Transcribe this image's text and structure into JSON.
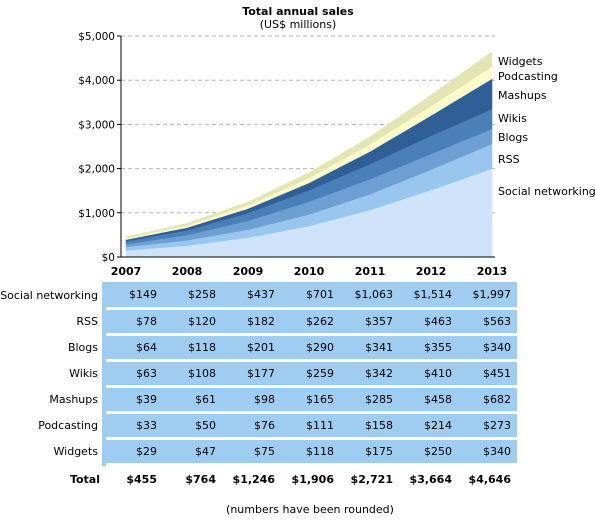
{
  "chart_data": {
    "type": "area",
    "stacked": true,
    "title": "Total annual sales",
    "subtitle": "(US$ millions)",
    "categories": [
      "2007",
      "2008",
      "2009",
      "2010",
      "2011",
      "2012",
      "2013"
    ],
    "ylim": [
      0,
      5000
    ],
    "yticks": [
      "$0",
      "$1,000",
      "$2,000",
      "$3,000",
      "$4,000",
      "$5,000"
    ],
    "grid": "horizontal dashed",
    "series": [
      {
        "name": "Social networking",
        "values": [
          149,
          258,
          437,
          701,
          1063,
          1514,
          1997
        ],
        "display": [
          "$149",
          "$258",
          "$437",
          "$701",
          "$1,063",
          "$1,514",
          "$1,997"
        ],
        "color": "#cfe4fb"
      },
      {
        "name": "RSS",
        "values": [
          78,
          120,
          182,
          262,
          357,
          463,
          563
        ],
        "display": [
          "$78",
          "$120",
          "$182",
          "$262",
          "$357",
          "$463",
          "$563"
        ],
        "color": "#98c6ef"
      },
      {
        "name": "Blogs",
        "values": [
          64,
          118,
          201,
          290,
          341,
          355,
          340
        ],
        "display": [
          "$64",
          "$118",
          "$201",
          "$290",
          "$341",
          "$355",
          "$340"
        ],
        "color": "#6d9fd2"
      },
      {
        "name": "Wikis",
        "values": [
          63,
          108,
          177,
          259,
          342,
          410,
          451
        ],
        "display": [
          "$63",
          "$108",
          "$177",
          "$259",
          "$342",
          "$410",
          "$451"
        ],
        "color": "#4a7fb8"
      },
      {
        "name": "Mashups",
        "values": [
          39,
          61,
          98,
          165,
          285,
          458,
          682
        ],
        "display": [
          "$39",
          "$61",
          "$98",
          "$165",
          "$285",
          "$458",
          "$682"
        ],
        "color": "#2f5f96"
      },
      {
        "name": "Podcasting",
        "values": [
          33,
          50,
          76,
          111,
          158,
          214,
          273
        ],
        "display": [
          "$33",
          "$50",
          "$76",
          "$111",
          "$158",
          "$214",
          "$273"
        ],
        "color": "#fbfbc9"
      },
      {
        "name": "Widgets",
        "values": [
          29,
          47,
          75,
          118,
          175,
          250,
          340
        ],
        "display": [
          "$29",
          "$47",
          "$75",
          "$118",
          "$175",
          "$250",
          "$340"
        ],
        "color": "#e3e6b4"
      }
    ],
    "totals": {
      "label": "Total",
      "values": [
        "$455",
        "$764",
        "$1,246",
        "$1,906",
        "$2,721",
        "$3,664",
        "$4,646"
      ]
    },
    "footnote": "(numbers have been rounded)"
  }
}
